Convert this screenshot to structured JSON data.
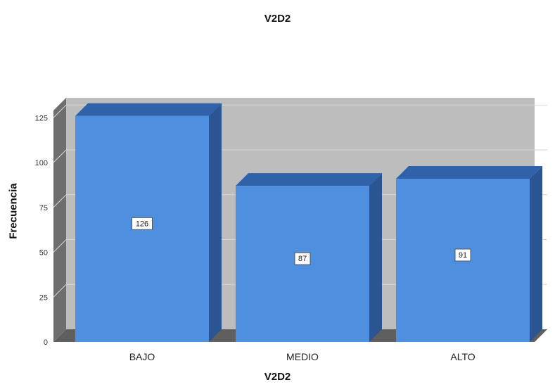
{
  "chart_data": {
    "type": "bar",
    "title": "V2D2",
    "xlabel": "V2D2",
    "ylabel": "Frecuencia",
    "categories": [
      "BAJO",
      "MEDIO",
      "ALTO"
    ],
    "values": [
      126,
      87,
      91
    ],
    "data_labels": [
      "126",
      "87",
      "91"
    ],
    "ylim": [
      0,
      140
    ],
    "yticks": [
      0,
      25,
      50,
      75,
      100,
      125
    ],
    "ytick_labels": [
      "0",
      "25",
      "50",
      "75",
      "100",
      "125"
    ],
    "grid": true,
    "legend": "none",
    "colors": {
      "bar_front": "#4f8fe0",
      "bar_top": "#2f62a8",
      "bar_side": "#2a5592",
      "plot_back": "#bdbdbd",
      "plot_left_wall": "#6e6e6e",
      "plot_floor": "#5f5f5f",
      "grid_line": "#d6d6d6"
    }
  }
}
